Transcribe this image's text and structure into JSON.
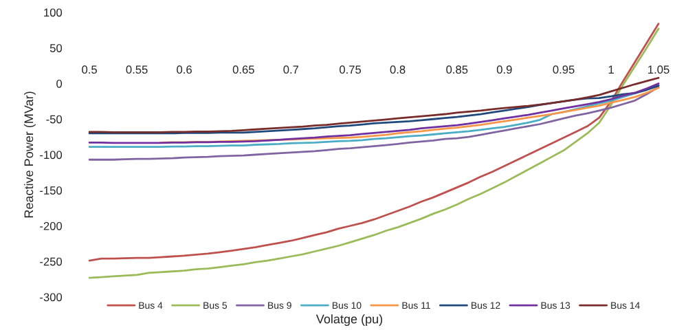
{
  "chart_data": {
    "type": "line",
    "xlabel": "Volatge (pu)",
    "ylabel": "Reactive Power (MVar)",
    "categories": [
      "0.5",
      null,
      null,
      null,
      "0.55",
      null,
      null,
      null,
      "0.6",
      null,
      null,
      null,
      null,
      "0.65",
      null,
      null,
      null,
      "0.7",
      null,
      null,
      null,
      null,
      "0.75",
      null,
      null,
      null,
      "0.8",
      null,
      null,
      null,
      null,
      "0.85",
      null,
      null,
      null,
      "0.9",
      null,
      null,
      null,
      null,
      "0.95",
      null,
      null,
      null,
      "1",
      null,
      null,
      null,
      "1.05"
    ],
    "series": [
      {
        "name": "Bus 4",
        "color": "#c0504d",
        "values": [
          -249,
          -246,
          -246,
          -245.5,
          -245,
          -245,
          -244,
          -243,
          -242,
          -240.5,
          -239,
          -237,
          -235,
          -232.5,
          -230,
          -227,
          -224,
          -221,
          -217,
          -213,
          -209,
          -204,
          -200,
          -196,
          -191,
          -185,
          -179,
          -173,
          -166,
          -160,
          -153,
          -146,
          -139,
          -131,
          -124,
          -116,
          -108,
          -100,
          -92,
          -84,
          -76,
          -68,
          -60,
          -48,
          -25,
          3,
          30,
          57,
          84
        ]
      },
      {
        "name": "Bus 5",
        "color": "#9bbb59",
        "values": [
          -273,
          -272,
          -271,
          -270,
          -269,
          -266,
          -265,
          -264,
          -263,
          -261,
          -260,
          -258,
          -256,
          -254,
          -251,
          -249,
          -246,
          -243,
          -240,
          -236,
          -232,
          -228,
          -223,
          -218,
          -213,
          -207,
          -202,
          -196,
          -190,
          -183,
          -177,
          -170,
          -162,
          -155,
          -147,
          -139,
          -130,
          -121,
          -112,
          -103,
          -94,
          -82,
          -70,
          -55,
          -30,
          -2,
          24,
          50,
          77
        ]
      },
      {
        "name": "Bus 9",
        "color": "#8064a2",
        "values": [
          -107,
          -107,
          -107,
          -106.5,
          -106,
          -106,
          -105.5,
          -105,
          -104,
          -103.5,
          -103,
          -102,
          -101.5,
          -101,
          -100,
          -99,
          -98,
          -97,
          -96,
          -95,
          -93.5,
          -92,
          -91,
          -89.5,
          -88,
          -86.5,
          -85,
          -83,
          -81.5,
          -80,
          -78,
          -77,
          -75,
          -72,
          -69,
          -66,
          -63,
          -60,
          -57,
          -53,
          -49,
          -45,
          -42,
          -38,
          -34,
          -29,
          -24,
          -15,
          -5
        ]
      },
      {
        "name": "Bus 10",
        "color": "#4bacc6",
        "values": [
          -89,
          -89,
          -89,
          -89,
          -89,
          -89,
          -89,
          -88.5,
          -88.5,
          -88,
          -88,
          -87.5,
          -87,
          -87,
          -86,
          -85.5,
          -85,
          -84,
          -83.5,
          -83,
          -82,
          -81,
          -80.5,
          -79.5,
          -78,
          -77,
          -75.5,
          -74,
          -73,
          -71.5,
          -70,
          -68.5,
          -67,
          -65,
          -63,
          -61,
          -58,
          -55,
          -51,
          -43,
          -40,
          -36,
          -32,
          -28,
          -24,
          -19,
          -14,
          -8,
          -2
        ]
      },
      {
        "name": "Bus 11",
        "color": "#f79646",
        "values": [
          null,
          null,
          null,
          null,
          null,
          null,
          -83,
          -82.5,
          -82.5,
          -82,
          -82,
          -81.5,
          -81,
          -80.5,
          -80,
          -79.5,
          -79,
          -78.5,
          -78,
          -77.5,
          -77,
          -76.5,
          -76,
          -75,
          -73.5,
          -72,
          -70,
          -68.5,
          -67,
          -65,
          -63.5,
          -62,
          -60,
          -58,
          -55.5,
          -53,
          -50.5,
          -48,
          -45.5,
          -43,
          -40,
          -37,
          -34,
          -31,
          -27,
          -23,
          -19,
          -13,
          -6
        ]
      },
      {
        "name": "Bus 12",
        "color": "#1f497d",
        "values": [
          -70,
          -70,
          -70,
          -70,
          -70,
          -70,
          -70,
          -70,
          -69.5,
          -69.5,
          -69.5,
          -69,
          -69,
          -69,
          -68,
          -67,
          -66,
          -65,
          -64,
          -63,
          -61.5,
          -60,
          -59,
          -57.5,
          -56,
          -55,
          -54,
          -53,
          -51.5,
          -50,
          -48.5,
          -47,
          -45,
          -43,
          -40.5,
          -38,
          -35.5,
          -33,
          -30,
          -27.5,
          -25,
          -22.5,
          -21,
          -20.5,
          -18,
          -15,
          -13.5,
          -9,
          -3
        ]
      },
      {
        "name": "Bus 13",
        "color": "#7030a0",
        "values": [
          -83,
          -83,
          -83.5,
          -83.5,
          -83.5,
          -83.5,
          -83.5,
          -83,
          -83,
          -82.5,
          -82.5,
          -82,
          -82,
          -81.5,
          -81,
          -80,
          -79,
          -78,
          -77,
          -76,
          -74.5,
          -73.5,
          -72.5,
          -71,
          -69.5,
          -68,
          -66.5,
          -65,
          -63,
          -61.5,
          -60,
          -58.5,
          -56.5,
          -54,
          -51.5,
          -49,
          -46.5,
          -44,
          -41,
          -38,
          -35,
          -32,
          -29,
          -26,
          -22,
          -17,
          -13,
          -7,
          0
        ]
      },
      {
        "name": "Bus 14",
        "color": "#772c2a",
        "values": [
          -68,
          -68,
          -68.5,
          -68.5,
          -68.5,
          -68.5,
          -68.5,
          -68,
          -68,
          -67.5,
          -67.5,
          -67,
          -66.5,
          -65.5,
          -64.5,
          -63.5,
          -62.5,
          -61.5,
          -60.5,
          -59,
          -58,
          -56.5,
          -55,
          -53.5,
          -52,
          -50.5,
          -49,
          -47.5,
          -46,
          -44.5,
          -43,
          -41,
          -39.5,
          -38,
          -36,
          -34.5,
          -33,
          -31.5,
          -29.5,
          -27.5,
          -25,
          -22.5,
          -19.5,
          -16,
          -11,
          -6,
          -1,
          3.5,
          8
        ]
      }
    ],
    "ylim": [
      -300,
      100
    ],
    "yticks": [
      -300,
      -250,
      -200,
      -150,
      -100,
      -50,
      0,
      50,
      100
    ],
    "legend": "bottom",
    "grid": false,
    "marker": "none",
    "line_style": "solid"
  }
}
